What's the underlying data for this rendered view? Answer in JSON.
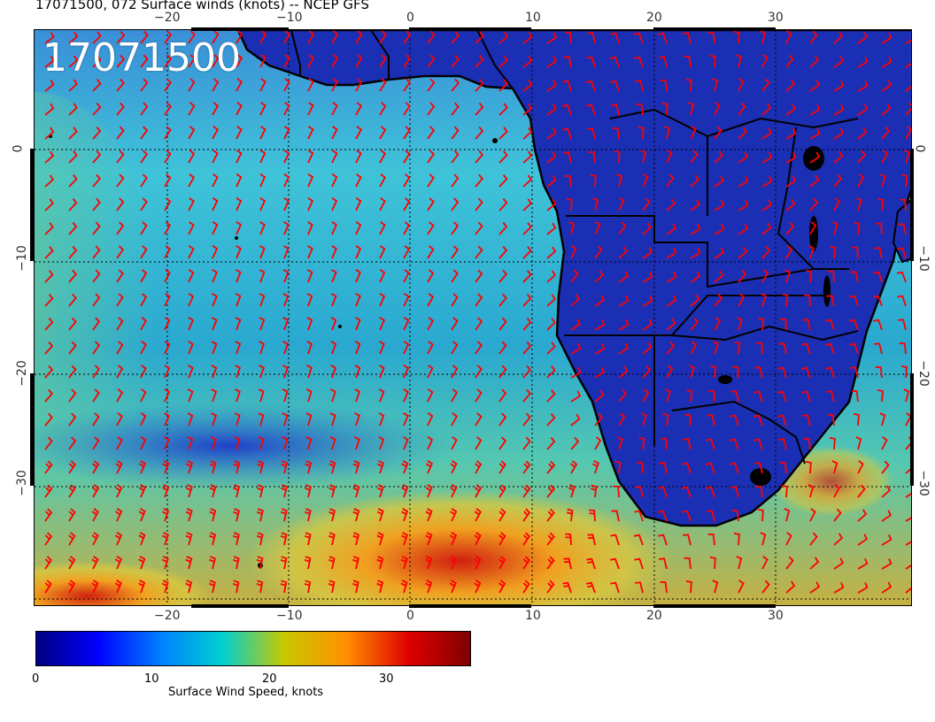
{
  "title": "17071500, 072 Surface winds (knots) -- NCEP GFS",
  "timestamp": "17071500",
  "axes": {
    "lon_ticks": [
      "−20",
      "−10",
      "0",
      "10",
      "20",
      "30"
    ],
    "lat_ticks": [
      "0",
      "−10",
      "−20",
      "−30"
    ]
  },
  "colorbar": {
    "label": "Surface Wind Speed, knots",
    "ticks": [
      "0",
      "10",
      "20",
      "30"
    ],
    "range": [
      0,
      37
    ],
    "colors": [
      "#00007f",
      "#0000ff",
      "#0080ff",
      "#00d0d0",
      "#c8c800",
      "#ff9000",
      "#e00000",
      "#7f0000"
    ]
  },
  "colors": {
    "wind_barbs": "#ff0000",
    "coastline": "#000000",
    "ocean_base": "#2ea9c8",
    "land_base": "#1a2fb3"
  }
}
